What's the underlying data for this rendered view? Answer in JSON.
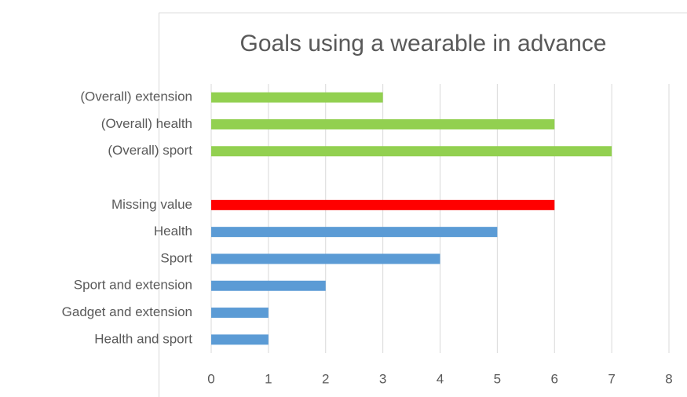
{
  "chart_data": {
    "type": "barh",
    "title": "Goals using a wearable in advance",
    "categories": [
      "(Overall) extension",
      "(Overall) health",
      "(Overall) sport",
      null,
      "Missing value",
      "Health",
      "Sport",
      "Sport and extension",
      "Gadget and extension",
      "Health and sport"
    ],
    "values": [
      3,
      6,
      7,
      null,
      6,
      5,
      4,
      2,
      1,
      1
    ],
    "colors": [
      "#92d050",
      "#92d050",
      "#92d050",
      null,
      "#ff0000",
      "#5b9bd5",
      "#5b9bd5",
      "#5b9bd5",
      "#5b9bd5",
      "#5b9bd5"
    ],
    "xlim": [
      0,
      8
    ],
    "xticks": [
      0,
      1,
      2,
      3,
      4,
      5,
      6,
      7,
      8
    ],
    "grid": true
  }
}
